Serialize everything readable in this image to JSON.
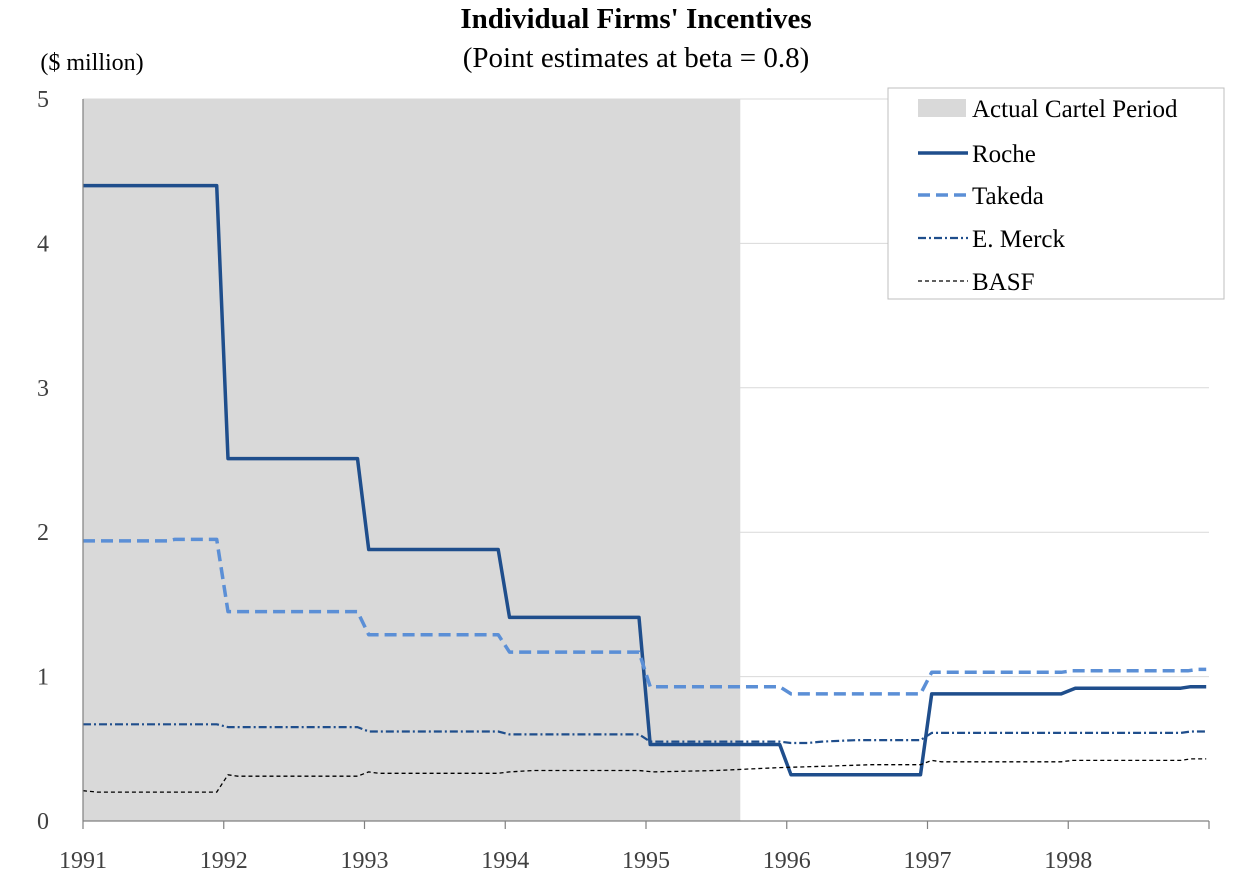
{
  "chart_data": {
    "type": "line",
    "title": "Individual Firms' Incentives",
    "subtitle": "(Point estimates at beta = 0.8)",
    "ylabel": "($ million)",
    "xlabel": "",
    "xlim": [
      1991,
      1999
    ],
    "ylim": [
      0,
      5
    ],
    "x_ticks": [
      "1991",
      "1992",
      "1993",
      "1994",
      "1995",
      "1996",
      "1997",
      "1998"
    ],
    "y_ticks": [
      "0",
      "1",
      "2",
      "3",
      "4",
      "5"
    ],
    "grid": "horizontal",
    "legend_position": "top-right",
    "shaded_region": {
      "name": "Actual Cartel Period",
      "x_start": 1991,
      "x_end": 1995.67,
      "color": "#d9d9d9"
    },
    "series": [
      {
        "name": "Roche",
        "color": "#1f4e8c",
        "style": "solid",
        "points": [
          [
            1991,
            4.4
          ],
          [
            1991.95,
            4.4
          ],
          [
            1992.03,
            2.51
          ],
          [
            1992.95,
            2.51
          ],
          [
            1993.03,
            1.88
          ],
          [
            1993.95,
            1.88
          ],
          [
            1994.03,
            1.41
          ],
          [
            1994.95,
            1.41
          ],
          [
            1995.03,
            0.53
          ],
          [
            1995.95,
            0.53
          ],
          [
            1996.03,
            0.32
          ],
          [
            1996.95,
            0.32
          ],
          [
            1997.03,
            0.88
          ],
          [
            1997.95,
            0.88
          ],
          [
            1998.05,
            0.92
          ],
          [
            1998.8,
            0.92
          ],
          [
            1998.87,
            0.93
          ],
          [
            1998.98,
            0.93
          ]
        ]
      },
      {
        "name": "Takeda",
        "color": "#5b8fd6",
        "style": "dashed",
        "points": [
          [
            1991,
            1.94
          ],
          [
            1991.6,
            1.94
          ],
          [
            1991.65,
            1.95
          ],
          [
            1991.95,
            1.95
          ],
          [
            1992.03,
            1.45
          ],
          [
            1992.95,
            1.45
          ],
          [
            1993.03,
            1.29
          ],
          [
            1993.95,
            1.29
          ],
          [
            1994.03,
            1.17
          ],
          [
            1994.95,
            1.17
          ],
          [
            1995.03,
            0.93
          ],
          [
            1995.95,
            0.93
          ],
          [
            1996.03,
            0.88
          ],
          [
            1996.95,
            0.88
          ],
          [
            1997.03,
            1.03
          ],
          [
            1997.95,
            1.03
          ],
          [
            1998.03,
            1.04
          ],
          [
            1998.85,
            1.04
          ],
          [
            1998.92,
            1.05
          ],
          [
            1998.98,
            1.05
          ]
        ]
      },
      {
        "name": "E. Merck",
        "color": "#1f4e8c",
        "style": "dashdot",
        "points": [
          [
            1991,
            0.67
          ],
          [
            1991.95,
            0.67
          ],
          [
            1992.03,
            0.65
          ],
          [
            1992.95,
            0.65
          ],
          [
            1993.03,
            0.62
          ],
          [
            1993.95,
            0.62
          ],
          [
            1994.03,
            0.6
          ],
          [
            1994.95,
            0.6
          ],
          [
            1995.03,
            0.55
          ],
          [
            1995.95,
            0.55
          ],
          [
            1996.03,
            0.54
          ],
          [
            1996.15,
            0.54
          ],
          [
            1996.25,
            0.55
          ],
          [
            1996.5,
            0.56
          ],
          [
            1996.95,
            0.56
          ],
          [
            1997.03,
            0.61
          ],
          [
            1997.95,
            0.61
          ],
          [
            1998.03,
            0.61
          ],
          [
            1998.8,
            0.61
          ],
          [
            1998.87,
            0.62
          ],
          [
            1998.98,
            0.62
          ]
        ]
      },
      {
        "name": "BASF",
        "color": "#000000",
        "style": "dotted",
        "points": [
          [
            1991,
            0.21
          ],
          [
            1991.1,
            0.2
          ],
          [
            1991.95,
            0.2
          ],
          [
            1992.03,
            0.32
          ],
          [
            1992.1,
            0.31
          ],
          [
            1992.95,
            0.31
          ],
          [
            1993.03,
            0.34
          ],
          [
            1993.1,
            0.33
          ],
          [
            1993.95,
            0.33
          ],
          [
            1994.03,
            0.34
          ],
          [
            1994.2,
            0.35
          ],
          [
            1994.95,
            0.35
          ],
          [
            1995.05,
            0.34
          ],
          [
            1995.5,
            0.35
          ],
          [
            1995.95,
            0.37
          ],
          [
            1996.3,
            0.38
          ],
          [
            1996.6,
            0.39
          ],
          [
            1996.95,
            0.39
          ],
          [
            1997.03,
            0.42
          ],
          [
            1997.1,
            0.41
          ],
          [
            1997.95,
            0.41
          ],
          [
            1998.03,
            0.42
          ],
          [
            1998.8,
            0.42
          ],
          [
            1998.87,
            0.43
          ],
          [
            1998.98,
            0.43
          ]
        ]
      }
    ]
  }
}
